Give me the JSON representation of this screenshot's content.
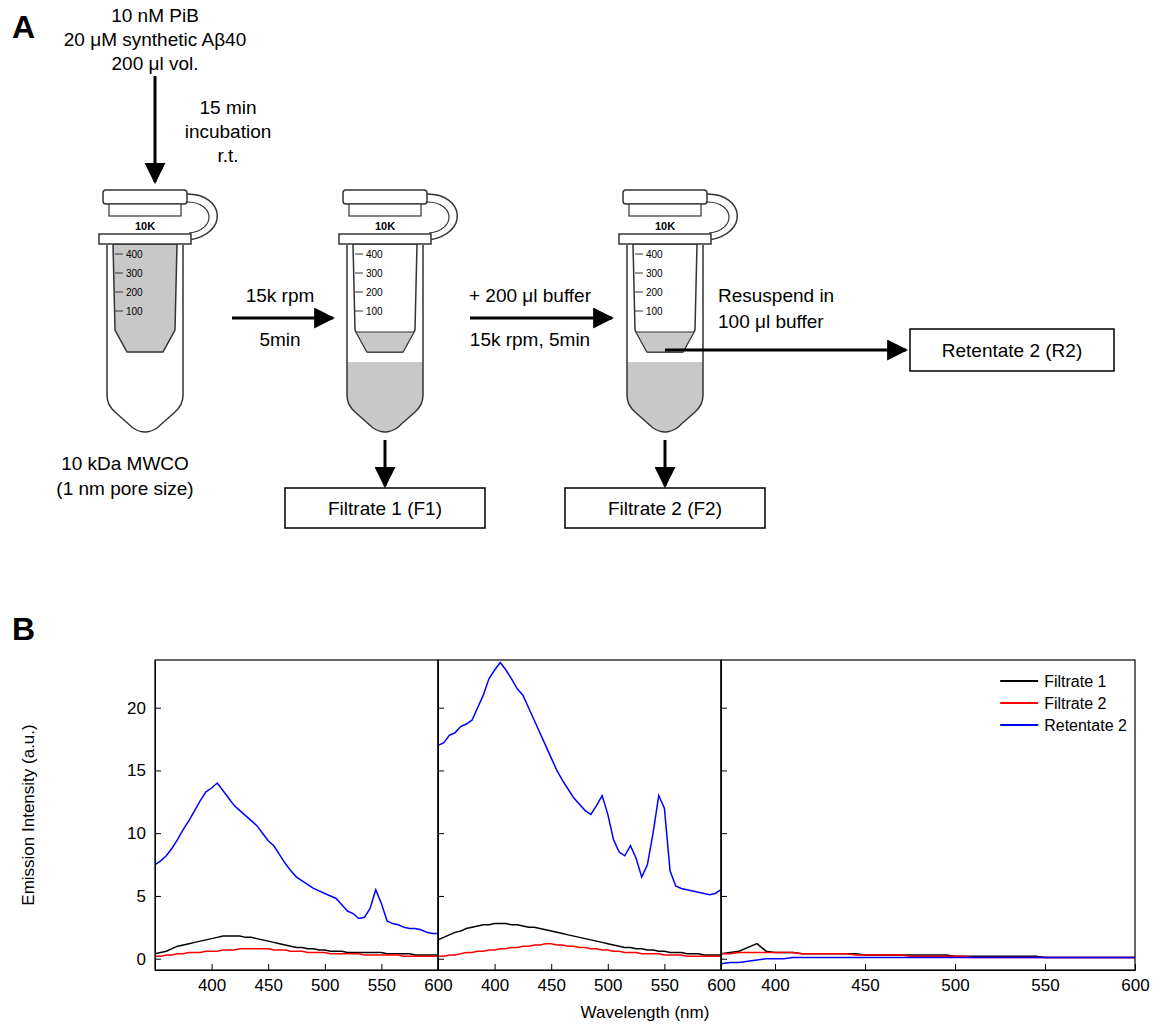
{
  "panel_labels": [
    "A",
    "B"
  ],
  "diagram": {
    "sample_lines": [
      "10 nM PiB",
      "20 μM synthetic Aβ40",
      "200 μl vol."
    ],
    "incubation_lines": [
      "15 min",
      "incubation",
      "r.t."
    ],
    "filter_lines": [
      "10 kDa MWCO",
      "(1 nm pore size)"
    ],
    "tube_label": "10K",
    "graduations": [
      "400",
      "300",
      "200",
      "100"
    ],
    "step1_lines": [
      "15k rpm",
      "5min"
    ],
    "step2_lines": [
      "+ 200 μl buffer",
      "15k rpm, 5min"
    ],
    "step3_lines": [
      "Resuspend in",
      "100 μl buffer"
    ],
    "boxes": [
      "Filtrate 1 (F1)",
      "Filtrate 2 (F2)",
      "Retentate 2 (R2)"
    ]
  },
  "chart_data": [
    {
      "type": "line",
      "ylabel": "Emission Intensity (a.u.)",
      "x": [
        350,
        355,
        360,
        365,
        370,
        375,
        380,
        385,
        390,
        395,
        400,
        405,
        410,
        415,
        420,
        425,
        430,
        435,
        440,
        445,
        450,
        455,
        460,
        465,
        470,
        475,
        480,
        485,
        490,
        495,
        500,
        505,
        510,
        515,
        520,
        525,
        530,
        535,
        540,
        545,
        550,
        555,
        560,
        565,
        570,
        575,
        580,
        585,
        590,
        595,
        600
      ],
      "series": [
        {
          "name": "Filtrate 1",
          "color": "#000000",
          "values": [
            0.4,
            0.5,
            0.6,
            0.8,
            1,
            1.1,
            1.2,
            1.3,
            1.4,
            1.5,
            1.6,
            1.7,
            1.8,
            1.8,
            1.8,
            1.8,
            1.7,
            1.7,
            1.6,
            1.5,
            1.4,
            1.3,
            1.2,
            1.1,
            1,
            0.9,
            0.9,
            0.8,
            0.8,
            0.7,
            0.7,
            0.6,
            0.6,
            0.6,
            0.5,
            0.5,
            0.5,
            0.5,
            0.5,
            0.5,
            0.5,
            0.4,
            0.4,
            0.4,
            0.4,
            0.4,
            0.3,
            0.3,
            0.3,
            0.3,
            0.3
          ]
        },
        {
          "name": "Filtrate 2",
          "color": "#ff0000",
          "values": [
            0.2,
            0.2,
            0.3,
            0.3,
            0.4,
            0.4,
            0.5,
            0.5,
            0.5,
            0.6,
            0.6,
            0.6,
            0.7,
            0.7,
            0.7,
            0.8,
            0.8,
            0.8,
            0.8,
            0.8,
            0.8,
            0.7,
            0.7,
            0.7,
            0.6,
            0.6,
            0.6,
            0.5,
            0.5,
            0.5,
            0.5,
            0.4,
            0.4,
            0.4,
            0.4,
            0.4,
            0.4,
            0.3,
            0.3,
            0.3,
            0.3,
            0.3,
            0.3,
            0.3,
            0.2,
            0.2,
            0.2,
            0.2,
            0.2,
            0.2,
            0.2
          ]
        },
        {
          "name": "Retentate 2",
          "color": "#0000ff",
          "values": [
            7.5,
            7.8,
            8.2,
            8.8,
            9.5,
            10.3,
            11,
            11.8,
            12.6,
            13.3,
            13.6,
            14,
            13.4,
            12.8,
            12.2,
            11.8,
            11.4,
            11,
            10.6,
            10,
            9.4,
            9,
            8.3,
            7.6,
            7,
            6.5,
            6.2,
            5.9,
            5.6,
            5.4,
            5.2,
            5,
            4.8,
            4.3,
            3.8,
            3.6,
            3.2,
            3.3,
            4,
            5.5,
            4.4,
            3,
            2.8,
            2.7,
            2.5,
            2.4,
            2.4,
            2.3,
            2.1,
            2,
            2
          ]
        }
      ],
      "xlim": [
        350,
        600
      ],
      "xticks": [
        400,
        450,
        500,
        550,
        600
      ],
      "ylim": [
        -0.9,
        23.8
      ],
      "yticks": [
        0,
        5,
        10,
        15,
        20
      ]
    },
    {
      "type": "line",
      "xlabel": "Wavelength (nm)",
      "x": [
        350,
        355,
        360,
        365,
        370,
        375,
        380,
        385,
        390,
        395,
        400,
        405,
        410,
        415,
        420,
        425,
        430,
        435,
        440,
        445,
        450,
        455,
        460,
        465,
        470,
        475,
        480,
        485,
        490,
        495,
        500,
        505,
        510,
        515,
        520,
        525,
        530,
        535,
        540,
        545,
        550,
        555,
        560,
        565,
        570,
        575,
        580,
        585,
        590,
        595,
        600
      ],
      "series": [
        {
          "name": "Filtrate 1",
          "color": "#000000",
          "values": [
            1.5,
            1.7,
            1.9,
            2.1,
            2.2,
            2.4,
            2.5,
            2.6,
            2.7,
            2.7,
            2.8,
            2.8,
            2.8,
            2.7,
            2.7,
            2.6,
            2.5,
            2.5,
            2.4,
            2.3,
            2.2,
            2.1,
            2,
            1.9,
            1.8,
            1.7,
            1.6,
            1.5,
            1.4,
            1.3,
            1.2,
            1.1,
            1,
            0.9,
            0.9,
            0.8,
            0.8,
            0.7,
            0.7,
            0.6,
            0.6,
            0.5,
            0.5,
            0.5,
            0.4,
            0.4,
            0.4,
            0.3,
            0.3,
            0.3,
            0.3
          ]
        },
        {
          "name": "Filtrate 2",
          "color": "#ff0000",
          "values": [
            0.2,
            0.2,
            0.3,
            0.3,
            0.4,
            0.5,
            0.5,
            0.6,
            0.6,
            0.7,
            0.7,
            0.8,
            0.8,
            0.9,
            0.9,
            1,
            1,
            1.1,
            1.1,
            1.2,
            1.2,
            1.1,
            1.1,
            1,
            1,
            0.9,
            0.9,
            0.8,
            0.8,
            0.7,
            0.7,
            0.6,
            0.6,
            0.5,
            0.5,
            0.5,
            0.4,
            0.4,
            0.4,
            0.4,
            0.3,
            0.3,
            0.3,
            0.3,
            0.2,
            0.2,
            0.2,
            0.2,
            0.2,
            0.2,
            0.2
          ]
        },
        {
          "name": "Retentate 2",
          "color": "#0000ff",
          "values": [
            17,
            17.2,
            17.8,
            18,
            18.5,
            18.7,
            19,
            20,
            21,
            22.3,
            23,
            23.6,
            23,
            22.3,
            21.5,
            21,
            20,
            19,
            18,
            17,
            16,
            15,
            14.2,
            13.5,
            12.8,
            12.3,
            11.8,
            11.5,
            12.2,
            13,
            11.5,
            9.5,
            8.5,
            8.2,
            9,
            8,
            6.5,
            7.5,
            10,
            13,
            12,
            7,
            5.8,
            5.6,
            5.5,
            5.4,
            5.3,
            5.2,
            5.1,
            5.2,
            5.5
          ]
        }
      ],
      "xlim": [
        350,
        600
      ],
      "xticks": [
        400,
        450,
        500,
        550,
        600
      ],
      "ylim": [
        -0.9,
        23.8
      ],
      "yticks": [
        0,
        5,
        10,
        15,
        20
      ],
      "tick_labels": "x"
    },
    {
      "type": "line",
      "x": [
        370,
        375,
        380,
        385,
        390,
        395,
        400,
        405,
        410,
        415,
        420,
        425,
        430,
        435,
        440,
        445,
        450,
        455,
        460,
        465,
        470,
        475,
        480,
        485,
        490,
        495,
        500,
        505,
        510,
        515,
        520,
        525,
        530,
        535,
        540,
        545,
        550,
        555,
        560,
        565,
        570,
        575,
        580,
        585,
        590,
        595,
        600
      ],
      "series": [
        {
          "name": "Filtrate 1",
          "color": "#000000",
          "values": [
            0.4,
            0.5,
            0.6,
            0.9,
            1.2,
            0.6,
            0.5,
            0.5,
            0.5,
            0.4,
            0.4,
            0.4,
            0.4,
            0.4,
            0.4,
            0.4,
            0.3,
            0.3,
            0.3,
            0.3,
            0.3,
            0.3,
            0.3,
            0.3,
            0.3,
            0.3,
            0.2,
            0.2,
            0.2,
            0.2,
            0.2,
            0.2,
            0.2,
            0.2,
            0.2,
            0.2,
            0.1,
            0.1,
            0.1,
            0.1,
            0.1,
            0.1,
            0.1,
            0.1,
            0.1,
            0.1,
            0.1
          ]
        },
        {
          "name": "Filtrate 2",
          "color": "#ff0000",
          "values": [
            0.4,
            0.4,
            0.5,
            0.5,
            0.5,
            0.5,
            0.5,
            0.5,
            0.5,
            0.4,
            0.4,
            0.4,
            0.4,
            0.4,
            0.4,
            0.3,
            0.3,
            0.3,
            0.3,
            0.3,
            0.3,
            0.2,
            0.2,
            0.2,
            0.2,
            0.2,
            0.2,
            0.2,
            0.1,
            0.1,
            0.1,
            0.1,
            0.1,
            0.1,
            0.1,
            0.1,
            0.1,
            0.1,
            0.1,
            0.1,
            0.1,
            0.1,
            0.1,
            0.1,
            0.1,
            0.1,
            0.1
          ]
        },
        {
          "name": "Retentate 2",
          "color": "#0000ff",
          "values": [
            -0.4,
            -0.3,
            -0.3,
            -0.2,
            -0.1,
            0,
            0,
            0,
            0.1,
            0.1,
            0.1,
            0.1,
            0.1,
            0.1,
            0.1,
            0.1,
            0.1,
            0.1,
            0.1,
            0.1,
            0.1,
            0.1,
            0.1,
            0.1,
            0.1,
            0.1,
            0.1,
            0.1,
            0.1,
            0.1,
            0.1,
            0.1,
            0.1,
            0.1,
            0.1,
            0.1,
            0.1,
            0.1,
            0.1,
            0.1,
            0.1,
            0.1,
            0.1,
            0.1,
            0.1,
            0.1,
            0.1
          ]
        }
      ],
      "xlim": [
        370,
        600
      ],
      "xticks": [
        400,
        450,
        500,
        550,
        600
      ],
      "ylim": [
        -0.9,
        23.8
      ],
      "yticks": [
        0,
        5,
        10,
        15,
        20
      ],
      "tick_labels": "x",
      "legend": "upper right"
    }
  ]
}
